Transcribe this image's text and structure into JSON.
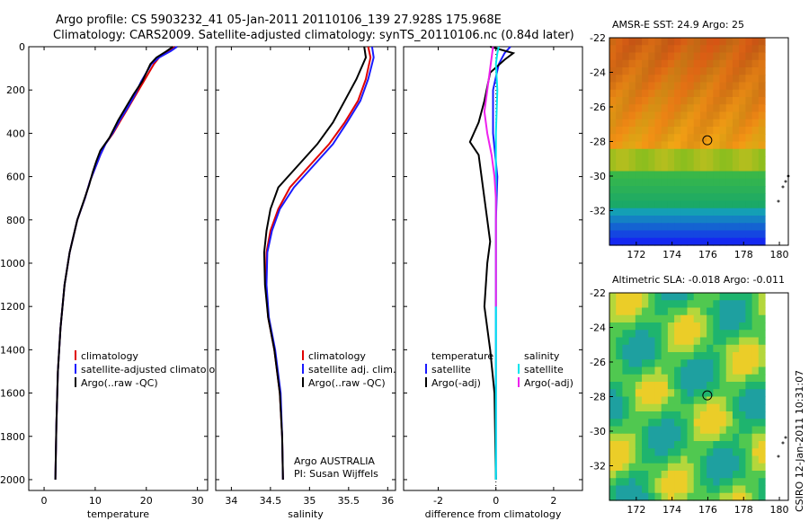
{
  "header": {
    "title_line1": "Argo profile: CS 5903232_41 05-Jan-2011 20110106_139 27.928S 175.968E",
    "title_line2": "Climatology: CARS2009. Satellite-adjusted climatology: synTS_20110106.nc (0.84d later)"
  },
  "colors": {
    "climatology": "#e00000",
    "satellite": "#1a1aff",
    "argo": "#000000",
    "salinity_satellite": "#00e5ee",
    "salinity_argo": "#ee22ee"
  },
  "chart_data": [
    {
      "id": "temperature",
      "type": "line",
      "xlabel": "temperature",
      "ylabel": "",
      "xlim": [
        -3,
        32
      ],
      "ylim": [
        2050,
        0
      ],
      "xticks": [
        0,
        10,
        20,
        30
      ],
      "yticks": [
        0,
        200,
        400,
        600,
        800,
        1000,
        1200,
        1400,
        1600,
        1800,
        2000
      ],
      "legend": {
        "placement": "lower-center",
        "entries": [
          {
            "label": "climatology",
            "color_key": "climatology"
          },
          {
            "label": "satellite-adjusted climatology",
            "color_key": "satellite"
          },
          {
            "label": "Argo(..raw -QC)",
            "color_key": "argo"
          }
        ]
      },
      "series": [
        {
          "name": "climatology",
          "color_key": "climatology",
          "x": [
            25.5,
            24.5,
            22.5,
            21.5,
            20.5,
            19.5,
            18.0,
            16.5,
            15.0,
            13.5,
            12.0,
            11.0,
            10.0,
            9.0,
            8.0,
            6.5,
            5.0,
            4.0,
            3.2,
            2.7,
            2.4,
            2.2
          ],
          "y": [
            0,
            20,
            50,
            80,
            120,
            160,
            220,
            280,
            340,
            400,
            450,
            500,
            560,
            620,
            700,
            800,
            950,
            1100,
            1300,
            1500,
            1750,
            2000
          ]
        },
        {
          "name": "satellite",
          "color_key": "satellite",
          "x": [
            26.0,
            24.8,
            22.5,
            21.0,
            20.0,
            19.0,
            17.8,
            16.4,
            14.8,
            13.4,
            12.0,
            11.0,
            10.0,
            9.0,
            8.0,
            6.5,
            5.0,
            4.0,
            3.2,
            2.7,
            2.4,
            2.2
          ],
          "y": [
            0,
            20,
            50,
            80,
            120,
            160,
            220,
            280,
            340,
            400,
            450,
            500,
            560,
            620,
            700,
            800,
            950,
            1100,
            1300,
            1500,
            1750,
            2000
          ]
        },
        {
          "name": "Argo",
          "color_key": "argo",
          "x": [
            25.2,
            24.0,
            22.0,
            20.8,
            20.0,
            19.2,
            17.5,
            16.0,
            14.5,
            12.8,
            11.0,
            10.2,
            9.5,
            8.8,
            7.8,
            6.5,
            5.0,
            4.0,
            3.2,
            2.7,
            2.4,
            2.2
          ],
          "y": [
            0,
            20,
            50,
            80,
            120,
            160,
            220,
            280,
            340,
            420,
            480,
            530,
            580,
            640,
            710,
            800,
            950,
            1100,
            1300,
            1500,
            1750,
            2000
          ]
        }
      ]
    },
    {
      "id": "salinity",
      "type": "line",
      "xlabel": "salinity",
      "ylabel": "",
      "xlim": [
        33.8,
        36.1
      ],
      "ylim": [
        2050,
        0
      ],
      "xticks": [
        34,
        34.5,
        35,
        35.5,
        36
      ],
      "legend": {
        "placement": "lower-center",
        "entries": [
          {
            "label": "climatology",
            "color_key": "climatology"
          },
          {
            "label": "satellite adj. clim.",
            "color_key": "satellite"
          },
          {
            "label": "Argo(..raw -QC)",
            "color_key": "argo"
          }
        ]
      },
      "annotations": [
        "Argo AUSTRALIA",
        "PI: Susan Wijffels"
      ],
      "series": [
        {
          "name": "climatology",
          "color_key": "climatology",
          "x": [
            35.75,
            35.78,
            35.72,
            35.62,
            35.45,
            35.25,
            35.0,
            34.75,
            34.6,
            34.5,
            34.45,
            34.44,
            34.47,
            34.55,
            34.62,
            34.65,
            34.66
          ],
          "y": [
            0,
            50,
            150,
            250,
            350,
            450,
            550,
            650,
            750,
            850,
            950,
            1100,
            1250,
            1400,
            1600,
            1800,
            2000
          ]
        },
        {
          "name": "satellite",
          "color_key": "satellite",
          "x": [
            35.8,
            35.82,
            35.75,
            35.65,
            35.48,
            35.3,
            35.05,
            34.8,
            34.62,
            34.52,
            34.46,
            34.45,
            34.48,
            34.56,
            34.63,
            34.65,
            34.66
          ],
          "y": [
            0,
            50,
            150,
            250,
            350,
            450,
            550,
            650,
            750,
            850,
            950,
            1100,
            1250,
            1400,
            1600,
            1800,
            2000
          ]
        },
        {
          "name": "Argo",
          "color_key": "argo",
          "x": [
            35.7,
            35.72,
            35.6,
            35.45,
            35.3,
            35.1,
            34.85,
            34.6,
            34.5,
            34.45,
            34.42,
            34.43,
            34.47,
            34.55,
            34.62,
            34.65,
            34.66
          ],
          "y": [
            0,
            50,
            150,
            250,
            350,
            450,
            550,
            650,
            750,
            850,
            950,
            1100,
            1250,
            1400,
            1600,
            1800,
            2000
          ]
        }
      ]
    },
    {
      "id": "difference",
      "type": "line",
      "xlabel": "difference from climatology",
      "ylabel": "",
      "xlim": [
        -3.2,
        3.0
      ],
      "ylim": [
        2050,
        0
      ],
      "xticks": [
        -2,
        0,
        2
      ],
      "legend": {
        "placement": "lower-center",
        "entries": [
          {
            "label": "temperature",
            "color_key": ""
          },
          {
            "label": "satellite",
            "color_key": "satellite"
          },
          {
            "label": "Argo(-adj)",
            "color_key": "argo"
          },
          {
            "label": "salinity",
            "color_key": ""
          },
          {
            "label": "satellite",
            "color_key": "salinity_satellite"
          },
          {
            "label": "Argo(-adj)",
            "color_key": "salinity_argo"
          }
        ]
      },
      "series": [
        {
          "name": "temperature satellite",
          "color_key": "satellite",
          "x": [
            0.5,
            0.3,
            0.1,
            -0.1,
            -0.1,
            0.05,
            0.0,
            0.0,
            0.0,
            0.0,
            0.0,
            0.0
          ],
          "y": [
            0,
            30,
            80,
            200,
            400,
            600,
            800,
            1000,
            1200,
            1500,
            1800,
            2000
          ]
        },
        {
          "name": "temperature Argo(-adj)",
          "color_key": "argo",
          "x": [
            -0.2,
            0.6,
            0.3,
            -0.2,
            -0.4,
            -0.6,
            -0.9,
            -0.6,
            -0.5,
            -0.4,
            -0.3,
            -0.2,
            -0.3,
            -0.4,
            -0.2,
            -0.05,
            0.0
          ],
          "y": [
            0,
            30,
            60,
            120,
            250,
            350,
            440,
            500,
            600,
            700,
            800,
            900,
            1000,
            1200,
            1400,
            1600,
            2000
          ]
        },
        {
          "name": "salinity satellite",
          "color_key": "salinity_satellite",
          "x": [
            0.1,
            0.05,
            0.0,
            0.05,
            0.0,
            0.0,
            0.0,
            0.0,
            0.0,
            0.0,
            0.0,
            0.0
          ],
          "y": [
            0,
            30,
            80,
            200,
            400,
            600,
            800,
            1000,
            1200,
            1500,
            1800,
            2000
          ]
        },
        {
          "name": "salinity Argo(-adj)",
          "color_key": "salinity_argo",
          "x": [
            -0.1,
            -0.2,
            -0.3,
            -0.4,
            -0.3,
            -0.15,
            -0.05,
            0.0,
            0.0,
            0.0,
            0.0
          ],
          "y": [
            0,
            100,
            200,
            300,
            400,
            500,
            600,
            700,
            800,
            1000,
            1200
          ]
        }
      ]
    }
  ],
  "maps": [
    {
      "id": "sst",
      "title": "AMSR-E SST: 24.9 Argo: 25",
      "xticks": [
        172,
        174,
        176,
        178,
        180
      ],
      "yticks": [
        -22,
        -24,
        -26,
        -28,
        -30,
        -32
      ],
      "xlim": [
        170.5,
        180.5
      ],
      "ylim": [
        -34,
        -22
      ],
      "profile_location": {
        "lon": 175.97,
        "lat": -27.93
      }
    },
    {
      "id": "sla",
      "title": "Altimetric SLA: -0.018 Argo: -0.011",
      "xticks": [
        172,
        174,
        176,
        178,
        180
      ],
      "yticks": [
        -22,
        -24,
        -26,
        -28,
        -30,
        -32
      ],
      "xlim": [
        170.5,
        180.5
      ],
      "ylim": [
        -34,
        -22
      ],
      "profile_location": {
        "lon": 175.97,
        "lat": -27.93
      }
    }
  ],
  "side_label": "CSIRO 12-Jan-2011 10:31:07"
}
